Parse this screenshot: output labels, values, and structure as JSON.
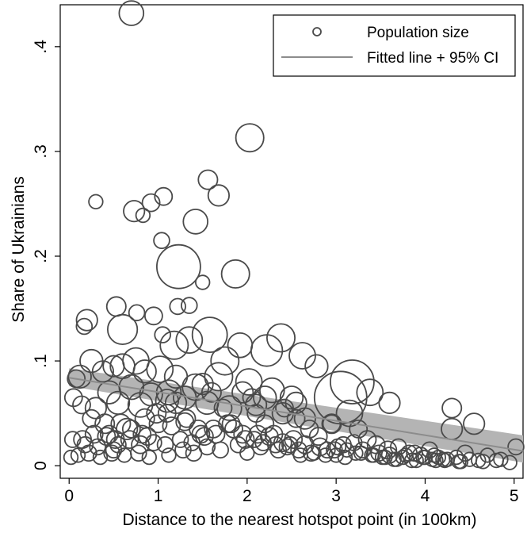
{
  "chart_data": {
    "type": "scatter",
    "xlabel": "Distance to the nearest hotspot point (in 100km)",
    "ylabel": "Share of Ukrainians",
    "xlim": [
      -0.1,
      5.1
    ],
    "ylim": [
      -0.012,
      0.44
    ],
    "x_ticks": [
      0,
      1,
      2,
      3,
      4,
      5
    ],
    "x_tick_labels": [
      "0",
      "1",
      "2",
      "3",
      "4",
      "5"
    ],
    "y_ticks": [
      0,
      0.1,
      0.2,
      0.3,
      0.4
    ],
    "y_tick_labels": [
      "0",
      ".1",
      ".2",
      ".3",
      ".4"
    ],
    "grid": false,
    "legend": {
      "position": "top-right",
      "entries": [
        {
          "label": "Population size",
          "symbol": "hollow-circle"
        },
        {
          "label": "Fitted line + 95% CI",
          "symbol": "line"
        }
      ]
    },
    "colors": {
      "marker_stroke": "#4a4a4a",
      "fit_line": "#8c8c8c",
      "ci_band": "#b4b4b4"
    },
    "fitted_line": {
      "x": [
        0,
        5.1
      ],
      "y": [
        0.084,
        0.014
      ],
      "ci_lower": [
        0.076,
        0.003
      ],
      "ci_upper": [
        0.093,
        0.029
      ]
    },
    "series": [
      {
        "name": "Population size",
        "x": [
          0.7,
          2.03,
          1.56,
          1.68,
          0.3,
          1.06,
          0.92,
          0.73,
          0.83,
          1.42,
          1.04,
          1.23,
          1.87,
          1.5,
          1.22,
          1.35,
          0.95,
          1.05,
          0.53,
          0.76,
          0.6,
          0.2,
          0.17,
          0.08,
          0.05,
          0.14,
          0.25,
          0.4,
          0.45,
          0.52,
          0.65,
          0.8,
          0.88,
          1.0,
          1.1,
          1.2,
          1.32,
          1.45,
          1.6,
          1.73,
          1.82,
          1.95,
          2.05,
          2.1,
          2.2,
          2.3,
          2.42,
          2.55,
          2.7,
          2.8,
          2.95,
          3.05,
          3.15,
          3.25,
          3.35,
          3.45,
          3.58,
          3.7,
          3.82,
          3.95,
          4.05,
          4.15,
          4.3,
          4.45,
          4.55,
          4.7,
          4.85,
          5.02,
          0.02,
          0.1,
          0.22,
          0.35,
          0.5,
          0.62,
          0.78,
          0.9,
          1.12,
          1.28,
          1.4,
          1.55,
          1.7,
          1.9,
          2.0,
          2.15,
          2.35,
          2.48,
          2.6,
          2.75,
          2.9,
          3.0,
          3.1,
          3.22,
          3.4,
          3.52,
          3.65,
          3.78,
          3.9,
          4.0,
          4.12,
          4.25,
          4.4,
          4.6,
          0.15,
          0.28,
          0.42,
          0.58,
          0.7,
          0.85,
          0.98,
          1.15,
          1.3,
          1.48,
          1.62,
          1.78,
          1.98,
          2.12,
          2.25,
          2.4,
          2.52,
          2.65,
          2.82,
          2.98,
          3.08,
          3.2,
          3.3,
          3.48,
          3.6,
          3.75,
          3.88,
          4.1,
          4.2,
          4.35,
          0.04,
          0.18,
          0.32,
          0.48,
          0.55,
          0.68,
          0.82,
          0.95,
          1.08,
          1.25,
          1.38,
          1.52,
          1.65,
          1.85,
          2.08,
          2.18,
          2.32,
          2.45,
          2.58,
          2.72,
          2.88,
          3.02,
          3.12,
          3.28,
          3.42,
          3.55,
          3.68,
          3.85,
          3.98,
          4.08,
          4.22,
          4.38,
          4.5,
          4.65,
          4.8,
          4.95,
          0.12,
          0.38,
          0.6,
          0.75,
          1.02,
          1.18,
          1.35,
          1.58,
          1.75,
          1.92,
          2.22,
          2.38,
          2.62,
          2.78,
          3.18,
          3.38,
          0.45,
          0.7,
          0.92,
          1.12,
          1.42,
          1.68,
          2.02,
          2.28,
          2.5,
          0.3,
          0.55,
          0.8,
          1.1,
          1.3,
          1.55,
          1.8,
          2.1,
          2.4,
          2.65,
          2.95,
          0.25,
          0.5,
          0.85,
          1.2,
          1.5,
          1.95,
          2.2,
          2.55,
          3.6,
          4.3
        ],
        "y": [
          0.432,
          0.313,
          0.273,
          0.258,
          0.252,
          0.257,
          0.251,
          0.243,
          0.239,
          0.233,
          0.215,
          0.19,
          0.183,
          0.175,
          0.152,
          0.153,
          0.143,
          0.125,
          0.152,
          0.146,
          0.13,
          0.139,
          0.133,
          0.083,
          0.065,
          0.058,
          0.045,
          0.04,
          0.03,
          0.025,
          0.035,
          0.02,
          0.028,
          0.04,
          0.05,
          0.06,
          0.045,
          0.035,
          0.07,
          0.055,
          0.04,
          0.03,
          0.065,
          0.05,
          0.04,
          0.03,
          0.055,
          0.045,
          0.035,
          0.028,
          0.04,
          0.065,
          0.05,
          0.035,
          0.025,
          0.02,
          0.015,
          0.018,
          0.012,
          0.01,
          0.015,
          0.008,
          0.035,
          0.012,
          0.04,
          0.01,
          0.006,
          0.018,
          0.008,
          0.01,
          0.012,
          0.008,
          0.015,
          0.01,
          0.012,
          0.008,
          0.01,
          0.015,
          0.012,
          0.018,
          0.015,
          0.02,
          0.012,
          0.018,
          0.015,
          0.02,
          0.01,
          0.012,
          0.015,
          0.01,
          0.008,
          0.012,
          0.01,
          0.008,
          0.006,
          0.01,
          0.005,
          0.008,
          0.005,
          0.006,
          0.004,
          0.005,
          0.025,
          0.03,
          0.028,
          0.04,
          0.035,
          0.045,
          0.05,
          0.038,
          0.042,
          0.03,
          0.035,
          0.04,
          0.025,
          0.03,
          0.028,
          0.022,
          0.025,
          0.02,
          0.018,
          0.015,
          0.02,
          0.022,
          0.015,
          0.012,
          0.01,
          0.008,
          0.012,
          0.01,
          0.006,
          0.008,
          0.025,
          0.02,
          0.018,
          0.012,
          0.02,
          0.025,
          0.03,
          0.022,
          0.02,
          0.025,
          0.022,
          0.028,
          0.03,
          0.035,
          0.025,
          0.022,
          0.02,
          0.018,
          0.015,
          0.012,
          0.01,
          0.018,
          0.015,
          0.012,
          0.01,
          0.008,
          0.006,
          0.005,
          0.008,
          0.006,
          0.005,
          0.004,
          0.006,
          0.004,
          0.005,
          0.003,
          0.085,
          0.09,
          0.095,
          0.1,
          0.092,
          0.115,
          0.12,
          0.125,
          0.1,
          0.115,
          0.11,
          0.122,
          0.105,
          0.095,
          0.08,
          0.07,
          0.07,
          0.075,
          0.068,
          0.07,
          0.075,
          0.085,
          0.08,
          0.072,
          0.065,
          0.055,
          0.06,
          0.058,
          0.062,
          0.065,
          0.06,
          0.055,
          0.058,
          0.05,
          0.045,
          0.04,
          0.1,
          0.095,
          0.09,
          0.085,
          0.078,
          0.07,
          0.065,
          0.06,
          0.06,
          0.055
        ],
        "size": [
          1.4,
          1.6,
          1.1,
          1.2,
          0.8,
          1.0,
          1.0,
          1.2,
          0.8,
          1.4,
          0.9,
          2.5,
          1.6,
          0.8,
          0.9,
          0.9,
          1.0,
          0.9,
          1.1,
          0.9,
          1.7,
          1.2,
          0.9,
          1.0,
          1.0,
          1.0,
          1.0,
          1.1,
          1.0,
          1.0,
          1.2,
          1.0,
          1.0,
          1.0,
          1.0,
          1.2,
          1.0,
          1.0,
          1.1,
          1.0,
          1.0,
          1.0,
          1.0,
          1.0,
          1.0,
          1.0,
          1.0,
          1.0,
          1.0,
          1.0,
          1.0,
          3.0,
          1.5,
          1.0,
          1.0,
          1.0,
          1.0,
          0.9,
          0.9,
          0.9,
          0.9,
          0.8,
          1.2,
          0.9,
          1.2,
          0.8,
          0.8,
          0.9,
          0.8,
          0.8,
          0.9,
          0.8,
          0.9,
          0.8,
          0.9,
          0.8,
          0.8,
          0.9,
          0.9,
          0.9,
          0.9,
          0.9,
          0.8,
          0.9,
          0.9,
          0.9,
          0.8,
          0.8,
          0.9,
          0.8,
          0.8,
          0.8,
          0.8,
          0.8,
          0.8,
          0.8,
          0.8,
          0.8,
          0.8,
          0.8,
          0.8,
          0.8,
          1.0,
          1.0,
          1.0,
          1.1,
          1.0,
          1.1,
          1.1,
          1.0,
          1.0,
          1.0,
          1.0,
          1.0,
          1.0,
          1.0,
          1.0,
          1.0,
          1.0,
          1.0,
          1.0,
          0.9,
          0.9,
          0.9,
          0.9,
          0.9,
          0.9,
          0.8,
          0.9,
          0.8,
          0.8,
          0.8,
          0.9,
          0.9,
          0.9,
          0.9,
          0.9,
          1.0,
          1.0,
          0.9,
          0.9,
          0.9,
          0.9,
          1.0,
          1.0,
          1.0,
          0.9,
          0.9,
          0.9,
          0.9,
          0.9,
          0.9,
          0.8,
          0.9,
          0.8,
          0.8,
          0.8,
          0.8,
          0.8,
          0.8,
          0.8,
          0.8,
          0.8,
          0.8,
          0.8,
          0.8,
          0.8,
          0.8,
          1.3,
          1.2,
          1.4,
          1.5,
          1.5,
          1.6,
          1.5,
          2.0,
          1.6,
          1.4,
          1.8,
          1.6,
          1.5,
          1.3,
          2.5,
          1.5,
          1.3,
          1.4,
          1.3,
          1.4,
          1.5,
          1.6,
          1.5,
          1.4,
          1.3,
          1.2,
          1.3,
          1.4,
          1.3,
          1.3,
          1.3,
          1.4,
          1.2,
          1.2,
          1.2,
          1.1,
          1.3,
          1.2,
          1.3,
          1.3,
          1.2,
          1.2,
          1.3,
          1.2,
          1.2,
          1.1
        ]
      }
    ]
  }
}
